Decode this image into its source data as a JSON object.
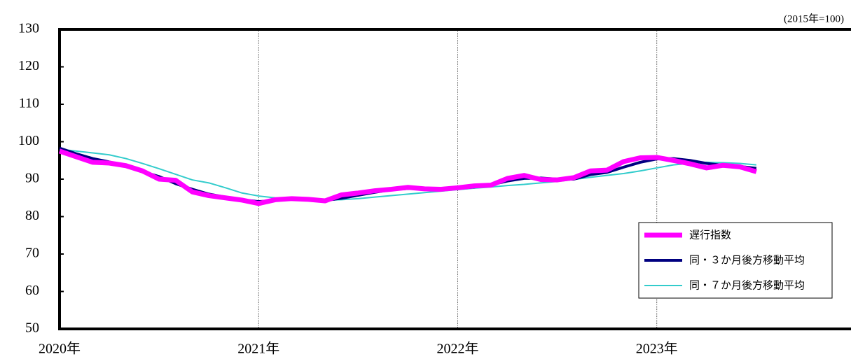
{
  "chart_data": {
    "type": "line",
    "unit_note": "(2015年=100)",
    "x": [
      0,
      1,
      2,
      3,
      4,
      5,
      6,
      7,
      8,
      9,
      10,
      11,
      12,
      13,
      14,
      15,
      16,
      17,
      18,
      19,
      20,
      21,
      22,
      23,
      24,
      25,
      26,
      27,
      28,
      29,
      30,
      31,
      32,
      33,
      34,
      35,
      36,
      37,
      38,
      39,
      40,
      41,
      42
    ],
    "xlim": [
      0,
      48
    ],
    "xticks": [
      {
        "value": 0,
        "label": "2020年"
      },
      {
        "value": 12,
        "label": "2021年"
      },
      {
        "value": 24,
        "label": "2022年"
      },
      {
        "value": 36,
        "label": "2023年"
      }
    ],
    "ylim": [
      50,
      130
    ],
    "yticks": [
      50,
      60,
      70,
      80,
      90,
      100,
      110,
      120,
      130
    ],
    "grid": "x",
    "legend": "lower right",
    "series": [
      {
        "name": "遅行指数",
        "color": "#ff00ff",
        "width": 7,
        "values": [
          97.5,
          96,
          94.5,
          94.3,
          93.6,
          92.2,
          90,
          89.7,
          86.6,
          85.6,
          85,
          84.4,
          83.5,
          84.5,
          84.8,
          84.6,
          84.2,
          85.8,
          86.3,
          86.9,
          87.3,
          87.8,
          87.4,
          87.3,
          87.7,
          88.2,
          88.4,
          90.2,
          91,
          89.9,
          89.8,
          90.4,
          92.2,
          92.4,
          94.7,
          95.7,
          95.8,
          95,
          94.1,
          93,
          93.7,
          93.3,
          92
        ]
      },
      {
        "name": "同・３か月後方移動平均",
        "color": "#000080",
        "width": 4,
        "values": [
          98.3,
          96.8,
          95.5,
          94.6,
          93.5,
          92,
          90.7,
          88.8,
          87.3,
          86,
          85.2,
          84.5,
          84,
          84.3,
          84.6,
          84.6,
          84.3,
          84.9,
          85.7,
          86.5,
          87.2,
          87.5,
          87.5,
          87.4,
          87.5,
          87.9,
          88.5,
          89.5,
          90.2,
          90.3,
          90,
          90,
          91.2,
          91.8,
          93.2,
          94.5,
          95.4,
          95.5,
          95,
          94.2,
          93.7,
          93.4,
          92.9
        ]
      },
      {
        "name": "同・７か月後方移動平均",
        "color": "#33cccc",
        "width": 2,
        "values": [
          98,
          97.5,
          97,
          96.5,
          95.5,
          94.2,
          92.8,
          91.3,
          89.8,
          89,
          87.7,
          86.3,
          85.5,
          85,
          84.7,
          84.5,
          84.4,
          84.5,
          84.8,
          85.2,
          85.6,
          86,
          86.4,
          86.8,
          87.2,
          87.6,
          87.9,
          88.3,
          88.6,
          89,
          89.4,
          89.9,
          90.5,
          91,
          91.5,
          92.2,
          93,
          93.8,
          94.2,
          94.5,
          94.4,
          94.2,
          93.8
        ]
      }
    ]
  }
}
